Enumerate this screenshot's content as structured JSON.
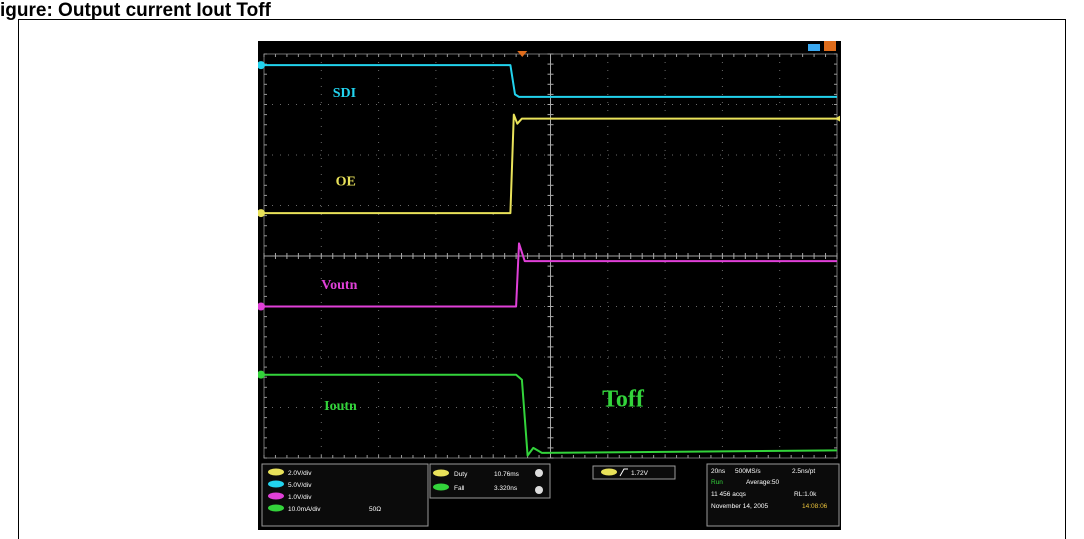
{
  "figure": {
    "caption": "igure: Output current Iout Toff"
  },
  "chart_data": {
    "type": "line",
    "title": "",
    "xlabel": "",
    "ylabel": "",
    "x_unit": "div",
    "y_unit": "div",
    "xlim": [
      0,
      10
    ],
    "ylim": [
      0,
      8
    ],
    "grid": true,
    "series": [
      {
        "name": "SDI",
        "color": "#22d3ee",
        "points": [
          [
            0,
            7.78
          ],
          [
            4.3,
            7.78
          ],
          [
            4.38,
            7.2
          ],
          [
            4.45,
            7.15
          ],
          [
            10,
            7.15
          ]
        ]
      },
      {
        "name": "OE",
        "color": "#e9e25a",
        "points": [
          [
            0,
            4.85
          ],
          [
            4.3,
            4.85
          ],
          [
            4.36,
            6.8
          ],
          [
            4.42,
            6.62
          ],
          [
            4.5,
            6.72
          ],
          [
            10,
            6.72
          ]
        ]
      },
      {
        "name": "Voutn",
        "color": "#e040d8",
        "points": [
          [
            0,
            3.0
          ],
          [
            4.4,
            3.0
          ],
          [
            4.45,
            4.25
          ],
          [
            4.55,
            3.9
          ],
          [
            10,
            3.9
          ]
        ]
      },
      {
        "name": "Ioutn",
        "color": "#33d33b",
        "points": [
          [
            0,
            1.65
          ],
          [
            4.4,
            1.65
          ],
          [
            4.5,
            1.55
          ],
          [
            4.6,
            0.05
          ],
          [
            4.7,
            0.2
          ],
          [
            4.85,
            0.1
          ],
          [
            10,
            0.15
          ]
        ]
      }
    ],
    "labels": [
      {
        "text": "SDI",
        "color": "#22d3ee"
      },
      {
        "text": "OE",
        "color": "#e9e25a"
      },
      {
        "text": "Voutn",
        "color": "#e040d8"
      },
      {
        "text": "Ioutn",
        "color": "#33d33b"
      }
    ],
    "annotation": {
      "text": "Toff",
      "color": "#33d33b"
    }
  },
  "status_panel": {
    "ch1": "2.0V/div",
    "ch2": "5.0V/div",
    "ch3": "1.0V/div",
    "ch4": "10.0mA/div",
    "ch4_impedance": "50Ω",
    "meas1_name": "Duty",
    "meas1_value": "10.76ms",
    "meas2_name": "Fall",
    "meas2_value": "3.320ns",
    "trigger": "1.72V",
    "timebase": "20ns",
    "sample_rate": "500MS/s",
    "points": "2.5ns/pt",
    "mode": "Run",
    "acq": "Average:50",
    "acqs": "11 456 acqs",
    "rl": "RL:1.0k",
    "date": "November 14, 2005",
    "time": "14:08:06"
  }
}
